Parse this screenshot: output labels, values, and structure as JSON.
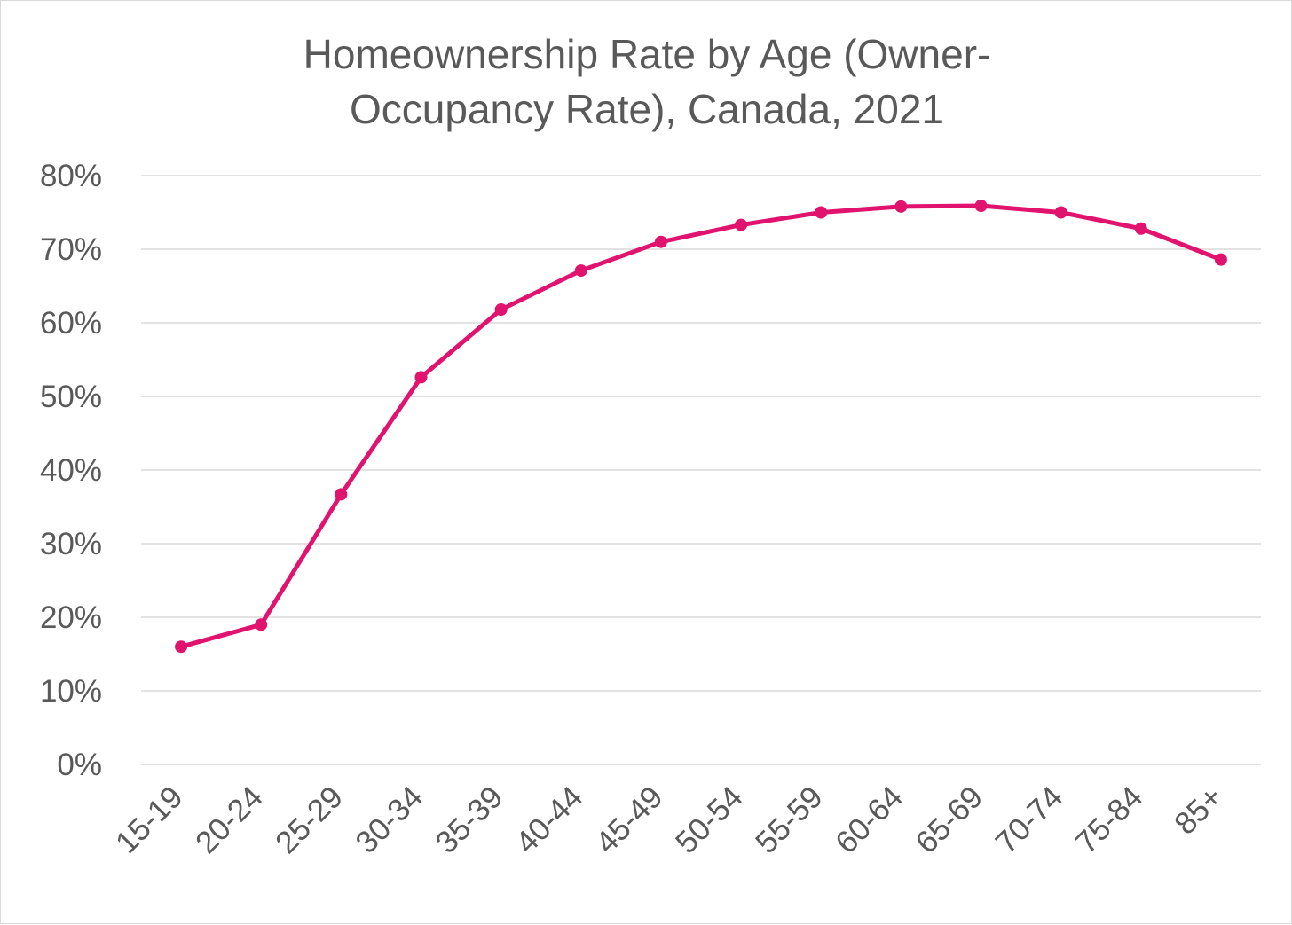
{
  "chart_data": {
    "type": "line",
    "title_lines": [
      "Homeownership Rate by Age (Owner-",
      "Occupancy Rate), Canada, 2021"
    ],
    "xlabel": "",
    "ylabel": "",
    "categories": [
      "15-19",
      "20-24",
      "25-29",
      "30-34",
      "35-39",
      "40-44",
      "45-49",
      "50-54",
      "55-59",
      "60-64",
      "65-69",
      "70-74",
      "75-84",
      "85+"
    ],
    "series": [
      {
        "values": [
          16.0,
          19.0,
          36.7,
          52.6,
          61.8,
          67.1,
          71.0,
          73.3,
          75.0,
          75.8,
          75.9,
          75.0,
          72.8,
          68.6
        ],
        "color": "#e0136f"
      }
    ],
    "ylim": [
      0,
      80
    ],
    "yticks": [
      {
        "value": 0,
        "label": "0%"
      },
      {
        "value": 10,
        "label": "10%"
      },
      {
        "value": 20,
        "label": "20%"
      },
      {
        "value": 30,
        "label": "30%"
      },
      {
        "value": 40,
        "label": "40%"
      },
      {
        "value": 50,
        "label": "50%"
      },
      {
        "value": 60,
        "label": "60%"
      },
      {
        "value": 70,
        "label": "70%"
      },
      {
        "value": 80,
        "label": "80%"
      }
    ],
    "grid": true,
    "legend": "none"
  }
}
